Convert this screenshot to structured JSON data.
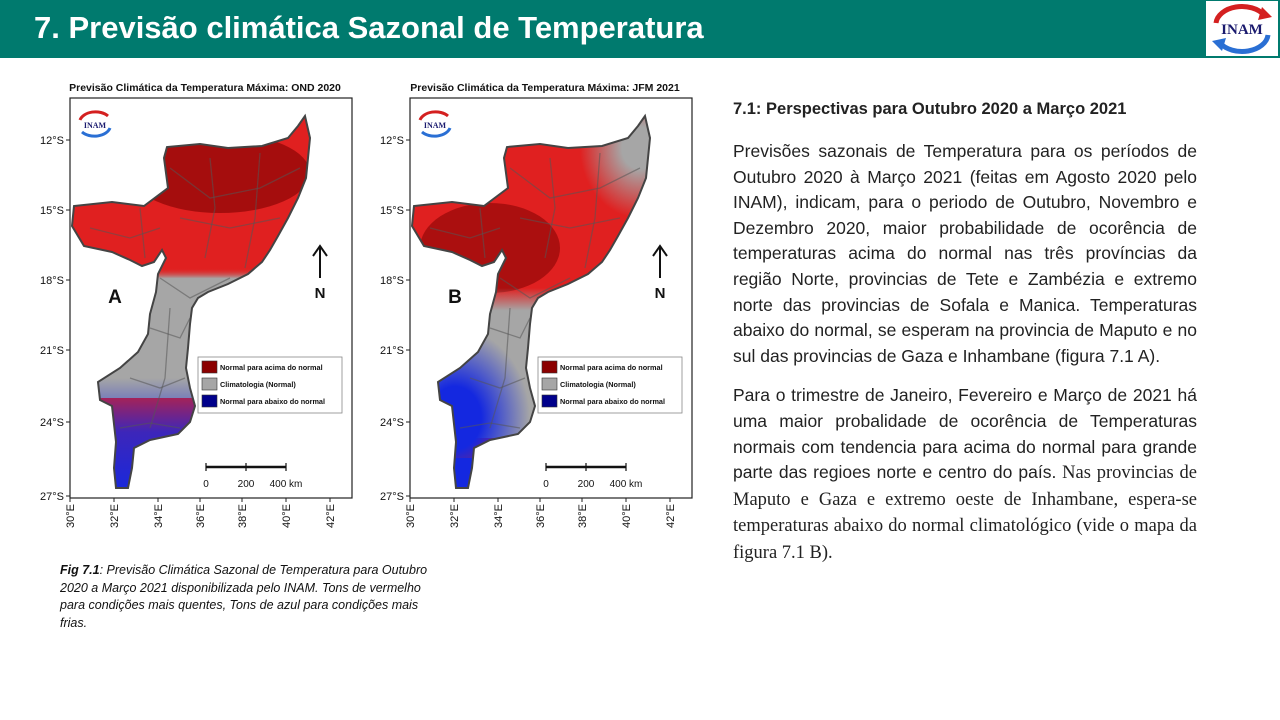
{
  "header": {
    "title": "7. Previsão climática Sazonal de Temperatura",
    "logo_text": "INAM"
  },
  "maps": [
    {
      "id": "A",
      "title": "Previsão Climática da Temperatura Máxima: OND 2020",
      "panel_label": "A"
    },
    {
      "id": "B",
      "title": "Previsão Climática da Temperatura Máxima: JFM 2021",
      "panel_label": "B"
    }
  ],
  "map_common": {
    "lat_labels": [
      "12°S",
      "15°S",
      "18°S",
      "21°S",
      "24°S",
      "27°S"
    ],
    "lon_labels": [
      "30°E",
      "32°E",
      "34°E",
      "36°E",
      "38°E",
      "40°E",
      "42°E"
    ],
    "north_label": "N",
    "logo_text": "INAM",
    "legend": [
      {
        "label": "Normal para acima do normal",
        "color": "#8b0000"
      },
      {
        "label": "Climatologia (Normal)",
        "color": "#a6a6a6"
      },
      {
        "label": "Normal para abaixo do normal",
        "color": "#00008b"
      }
    ],
    "scale_labels": [
      "0",
      "200",
      "400 km"
    ]
  },
  "colors": {
    "header_bg": "#007a6e",
    "warm": "#e02020",
    "dark_warm": "#9a0a0a",
    "normal": "#a6a6a6",
    "cold": "#1428e0"
  },
  "caption": {
    "label": "Fig 7.1",
    "text": ": Previsão Climática Sazonal de Temperatura para Outubro  2020 a Março 2021 disponibilizada pelo INAM.  Tons de vermelho para  condições mais quentes, Tons de azul para  condições mais frias."
  },
  "section": {
    "heading": "7.1: Perspectivas para  Outubro  2020 a Março  2021",
    "para1": "Previsões sazonais de Temperatura para os períodos de Outubro 2020 à Março 2021 (feitas em Agosto 2020 pelo INAM), indicam, para o periodo de Outubro, Novembro e Dezembro 2020, maior probabilidade de ocorência de temperaturas acima do normal nas três províncias da região Norte, provincias de Tete e Zambézia e extremo norte das provincias de Sofala e Manica. Temperaturas abaixo do normal, se esperam na provincia de Maputo e no sul das provincias de Gaza e Inhambane (figura 7.1 A).",
    "para2_a": "Para o trimestre de Janeiro, Fevereiro e Março de 2021 há uma maior probalidade de ocorência de Temperaturas normais com tendencia para acima do normal para grande parte das regioes norte e centro do país.",
    "para2_b": " Nas provincias de Maputo e Gaza e extremo oeste de Inhambane, espera-se temperaturas abaixo do normal climatológico (vide o mapa da figura 7.1 B)."
  }
}
